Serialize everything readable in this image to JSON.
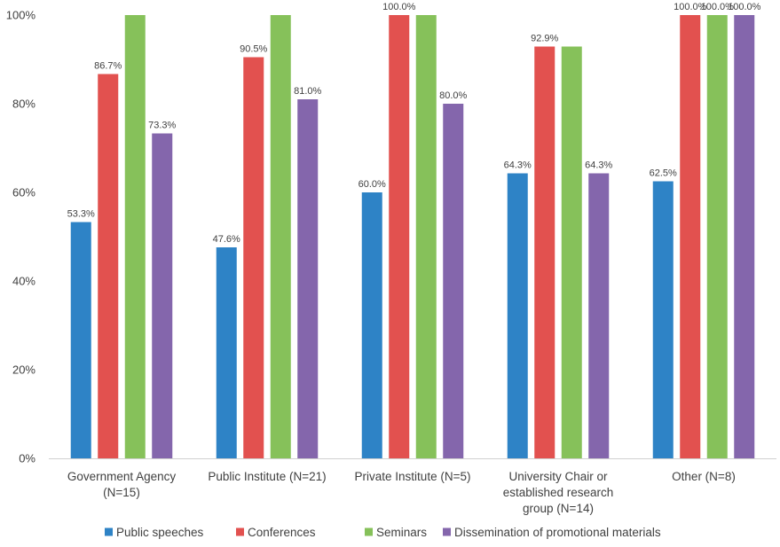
{
  "chart_data": {
    "type": "bar",
    "title": "",
    "xlabel": "",
    "ylabel": "",
    "categories": [
      [
        "Government Agency",
        "(N=15)"
      ],
      [
        "Public Institute (N=21)"
      ],
      [
        "Private Institute (N=5)"
      ],
      [
        "University Chair or",
        "established research",
        "group (N=14)"
      ],
      [
        "Other (N=8)"
      ]
    ],
    "series": [
      {
        "name": "Public speeches",
        "color": "#2E83C6",
        "values": [
          53.3,
          47.6,
          60.0,
          64.3,
          62.5
        ],
        "labels": [
          "53.3%",
          "47.6%",
          "60.0%",
          "64.3%",
          "62.5%"
        ]
      },
      {
        "name": "Conferences",
        "color": "#E2514F",
        "values": [
          86.7,
          90.5,
          100.0,
          92.9,
          100.0
        ],
        "labels": [
          "86.7%",
          "90.5%",
          "100.0%",
          "92.9%",
          "100.0%"
        ]
      },
      {
        "name": "Seminars",
        "color": "#86C15A",
        "values": [
          100.0,
          100.0,
          100.0,
          92.9,
          100.0
        ],
        "labels": [
          null,
          null,
          null,
          null,
          "100.0%"
        ]
      },
      {
        "name": "Dissemination of promotional materials",
        "color": "#8466AC",
        "values": [
          73.3,
          81.0,
          80.0,
          64.3,
          100.0
        ],
        "labels": [
          "73.3%",
          "81.0%",
          "80.0%",
          "64.3%",
          "100.0%"
        ]
      }
    ],
    "ylim": [
      0,
      100
    ],
    "yticks": [
      0,
      20,
      40,
      60,
      80,
      100
    ],
    "ytick_labels": [
      "0%",
      "20%",
      "40%",
      "60%",
      "80%",
      "100%"
    ],
    "grid": false,
    "legend": "bottom"
  }
}
